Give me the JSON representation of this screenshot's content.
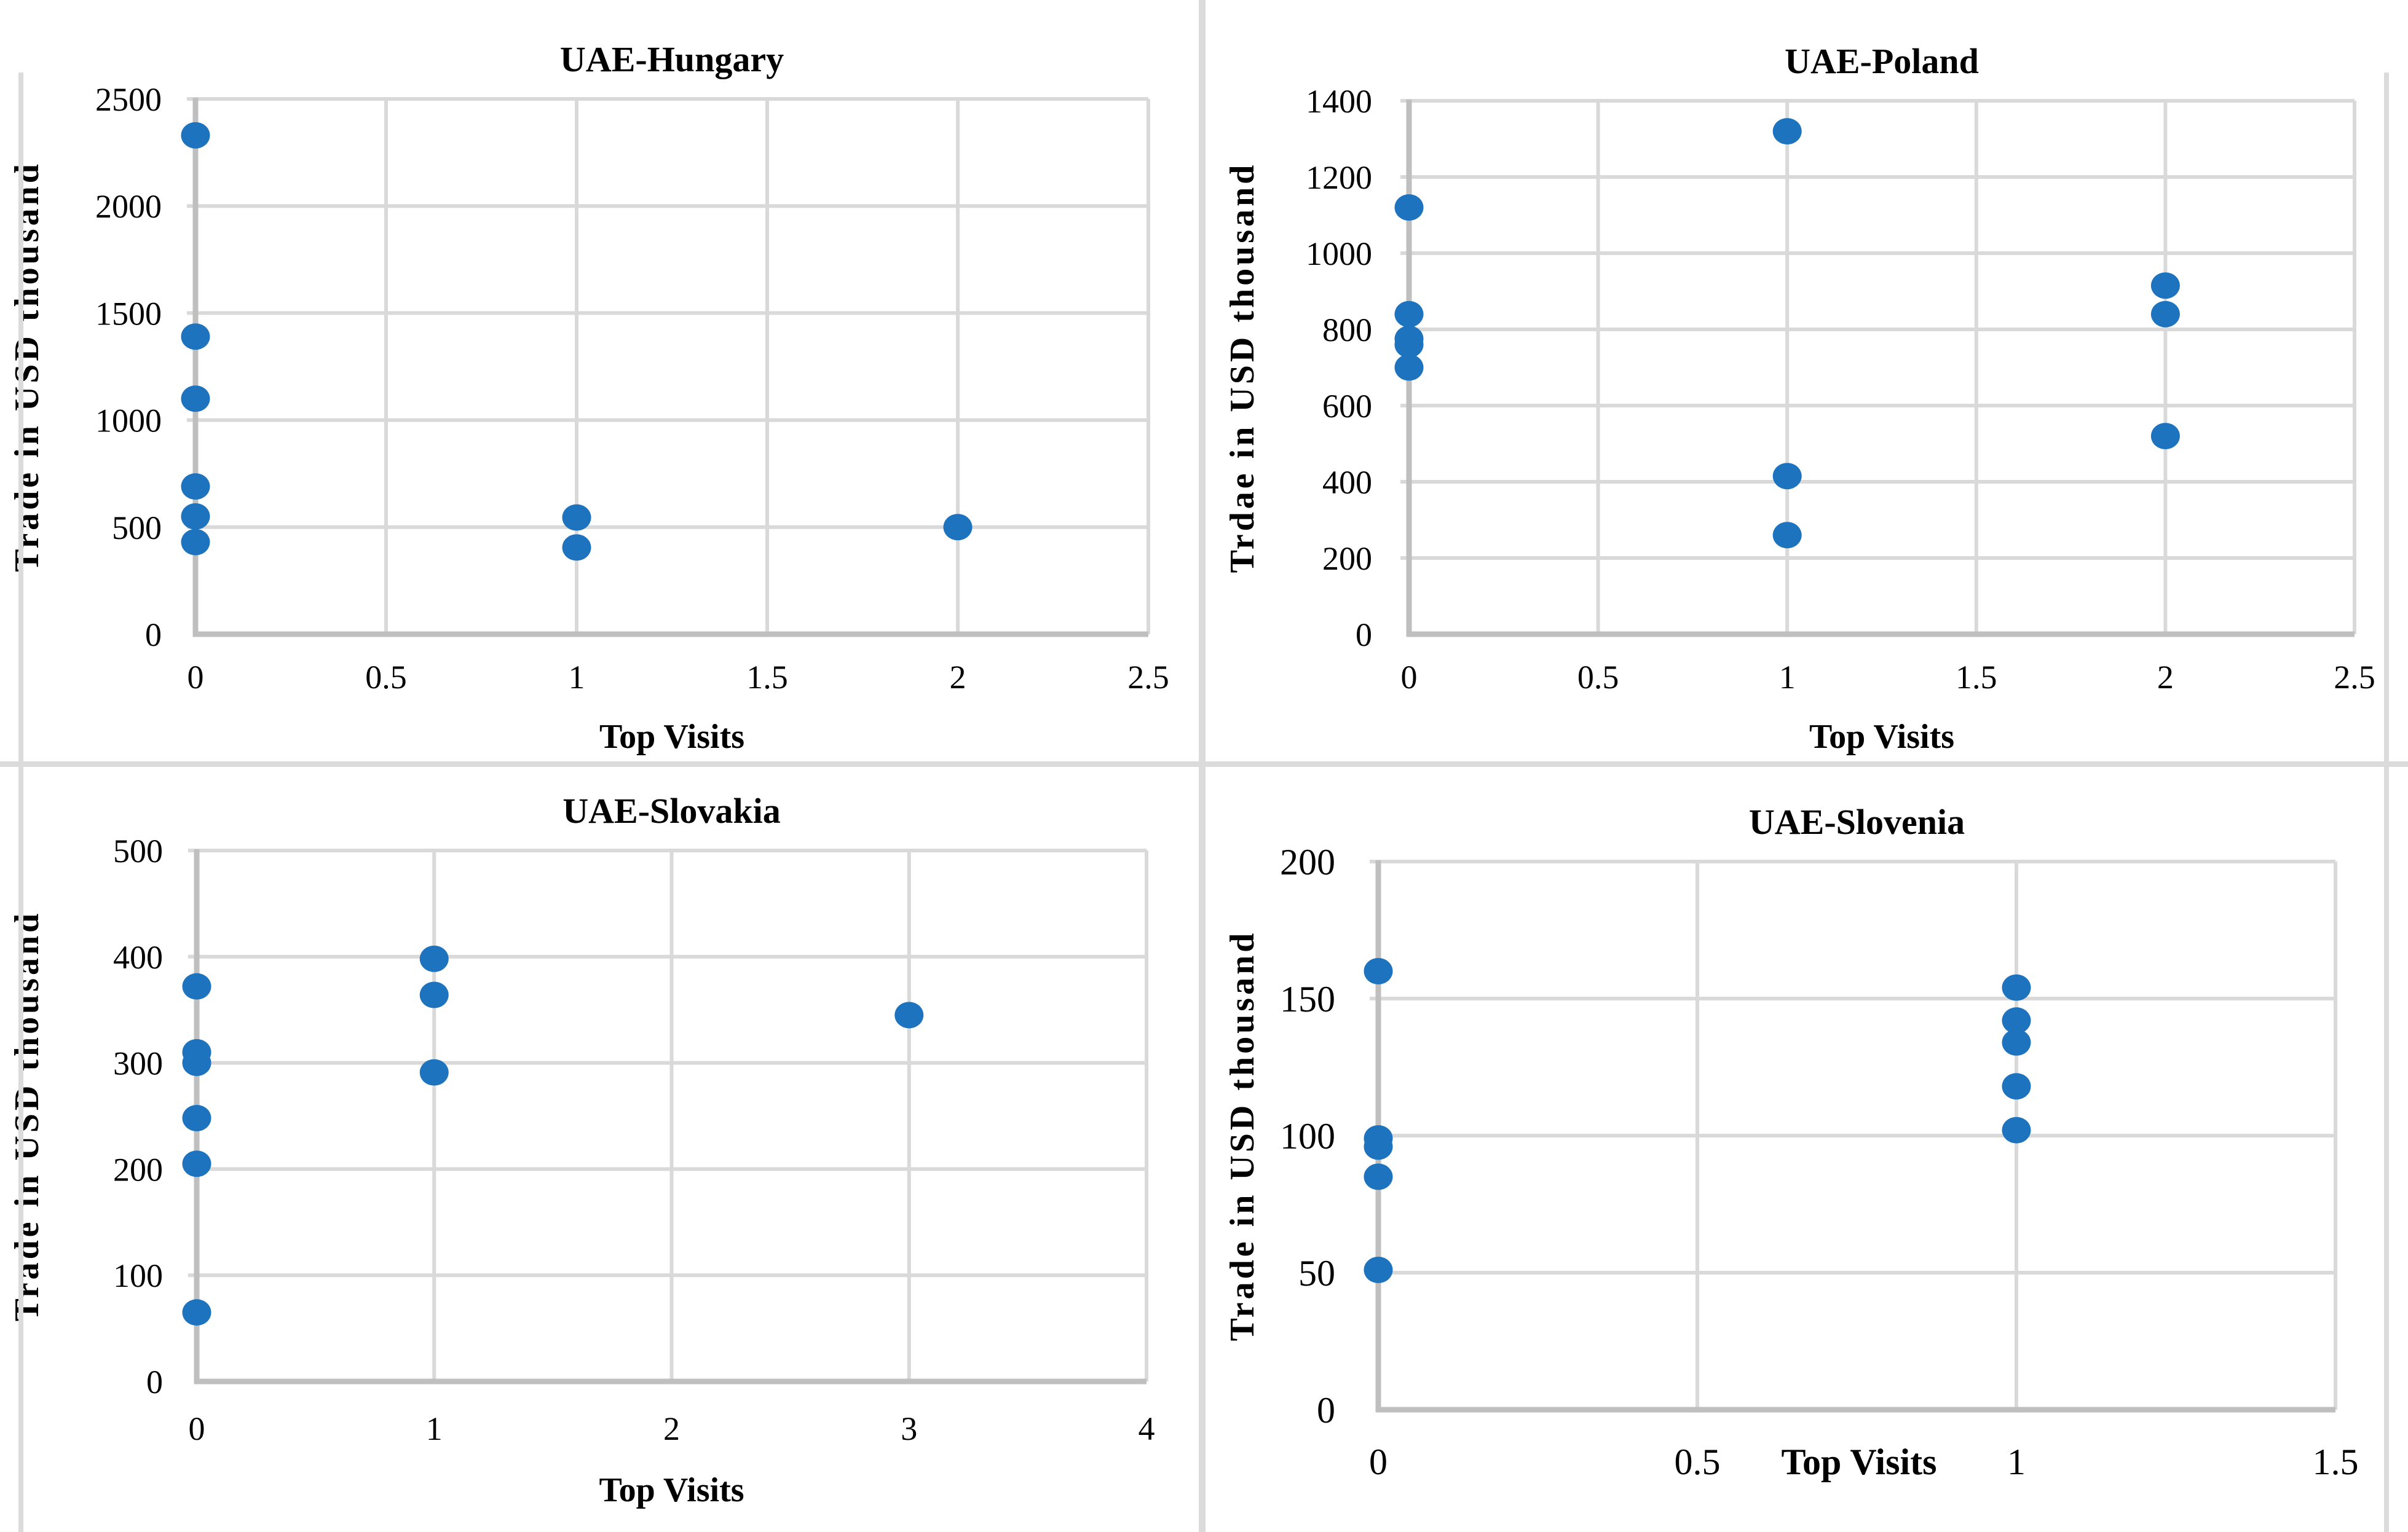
{
  "styles": {
    "dot_color": "#1E73BE",
    "grid_color": "#D9D9D9",
    "axis_color": "#BFBFBF",
    "divider_color": "#DBDBDB",
    "text_color": "#000000",
    "background": "#FFFFFF"
  },
  "chart_data": [
    {
      "type": "scatter",
      "title": "UAE-Hungary",
      "xlabel": "Top Visits",
      "ylabel": "Trade in USD thousand",
      "xlim": [
        0,
        2.5
      ],
      "ylim": [
        0,
        2500
      ],
      "grid": true,
      "legend": false,
      "x_ticks": [
        0,
        0.5,
        1,
        1.5,
        2,
        2.5
      ],
      "x_tick_labels": [
        "0",
        "0.5",
        "1",
        "1.5",
        "2",
        "2.5"
      ],
      "y_ticks": [
        0,
        500,
        1000,
        1500,
        2000,
        2500
      ],
      "y_tick_labels": [
        "0",
        "500",
        "1000",
        "1500",
        "2000",
        "2500"
      ],
      "points": [
        [
          0,
          2330
        ],
        [
          0,
          1390
        ],
        [
          0,
          1100
        ],
        [
          0,
          690
        ],
        [
          0,
          550
        ],
        [
          0,
          430
        ],
        [
          1,
          545
        ],
        [
          1,
          405
        ],
        [
          2,
          500
        ]
      ]
    },
    {
      "type": "scatter",
      "title": "UAE-Poland",
      "xlabel": "Top Visits",
      "ylabel": "Trdae in USD thousand",
      "xlim": [
        0,
        2.5
      ],
      "ylim": [
        0,
        1400
      ],
      "grid": true,
      "legend": false,
      "x_ticks": [
        0,
        0.5,
        1,
        1.5,
        2,
        2.5
      ],
      "x_tick_labels": [
        "0",
        "0.5",
        "1",
        "1.5",
        "2",
        "2.5"
      ],
      "y_ticks": [
        0,
        200,
        400,
        600,
        800,
        1000,
        1200,
        1400
      ],
      "y_tick_labels": [
        "0",
        "200",
        "400",
        "600",
        "800",
        "1000",
        "1200",
        "1400"
      ],
      "points": [
        [
          0,
          1120
        ],
        [
          0,
          840
        ],
        [
          0,
          775
        ],
        [
          0,
          760
        ],
        [
          0,
          700
        ],
        [
          1,
          1320
        ],
        [
          1,
          415
        ],
        [
          1,
          260
        ],
        [
          2,
          915
        ],
        [
          2,
          840
        ],
        [
          2,
          520
        ]
      ]
    },
    {
      "type": "scatter",
      "title": "UAE-Slovakia",
      "xlabel": "Top Visits",
      "ylabel": "Trade in USD thousand",
      "xlim": [
        0,
        4
      ],
      "ylim": [
        0,
        500
      ],
      "grid": true,
      "legend": false,
      "x_ticks": [
        0,
        1,
        2,
        3,
        4
      ],
      "x_tick_labels": [
        "0",
        "1",
        "2",
        "3",
        "4"
      ],
      "y_ticks": [
        0,
        100,
        200,
        300,
        400,
        500
      ],
      "y_tick_labels": [
        "0",
        "100",
        "200",
        "300",
        "400",
        "500"
      ],
      "points": [
        [
          0,
          372
        ],
        [
          0,
          310
        ],
        [
          0,
          300
        ],
        [
          0,
          248
        ],
        [
          0,
          205
        ],
        [
          0,
          65
        ],
        [
          1,
          398
        ],
        [
          1,
          364
        ],
        [
          1,
          291
        ],
        [
          3,
          345
        ]
      ]
    },
    {
      "type": "scatter",
      "title": "UAE-Slovenia",
      "xlabel": "Top Visits",
      "xlabel_inline": true,
      "ylabel": "Trade in USD thousand",
      "xlim": [
        0,
        1.5
      ],
      "ylim": [
        0,
        200
      ],
      "grid": true,
      "legend": false,
      "x_ticks": [
        0,
        0.5,
        1,
        1.5
      ],
      "x_tick_labels": [
        "0",
        "0.5",
        "1",
        "1.5"
      ],
      "y_ticks": [
        0,
        50,
        100,
        150,
        200
      ],
      "y_tick_labels": [
        "0",
        "50",
        "100",
        "150",
        "200"
      ],
      "points": [
        [
          0,
          160
        ],
        [
          0,
          99
        ],
        [
          0,
          96
        ],
        [
          0,
          85
        ],
        [
          0,
          51
        ],
        [
          1,
          154
        ],
        [
          1,
          142
        ],
        [
          1,
          134
        ],
        [
          1,
          118
        ],
        [
          1,
          102
        ]
      ]
    }
  ]
}
